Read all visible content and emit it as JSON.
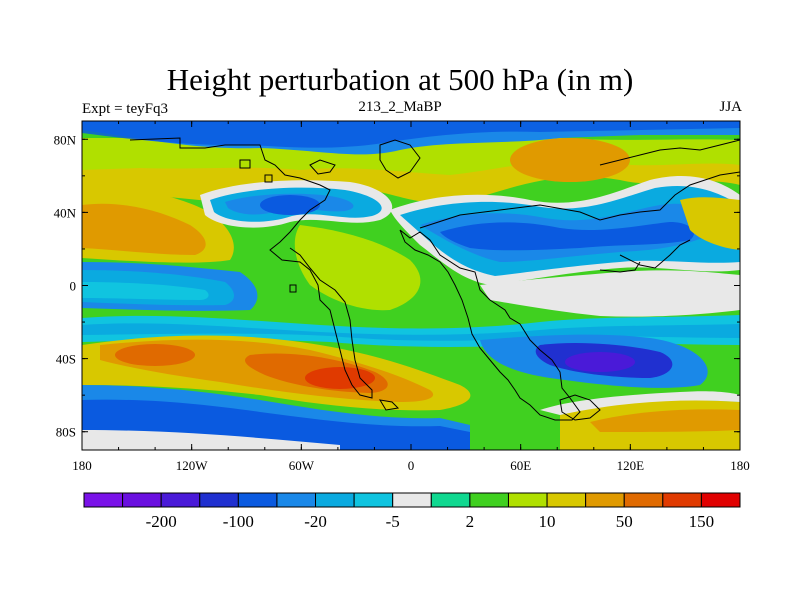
{
  "title": "Height perturbation at 500 hPa (in m)",
  "subtitle_left": "Expt = teyFq3",
  "subtitle_center": "213_2_MaBP",
  "subtitle_right": "JJA",
  "x_ticks": [
    {
      "lon": -180,
      "label": "180"
    },
    {
      "lon": -120,
      "label": "120W"
    },
    {
      "lon": -60,
      "label": "60W"
    },
    {
      "lon": 0,
      "label": "0"
    },
    {
      "lon": 60,
      "label": "60E"
    },
    {
      "lon": 120,
      "label": "120E"
    },
    {
      "lon": 180,
      "label": "180"
    }
  ],
  "y_ticks": [
    {
      "lat": 80,
      "label": "80N"
    },
    {
      "lat": 40,
      "label": "40N"
    },
    {
      "lat": 0,
      "label": "0"
    },
    {
      "lat": -40,
      "label": "40S"
    },
    {
      "lat": -80,
      "label": "80S"
    }
  ],
  "colorbar": {
    "colors": [
      "#7a12e8",
      "#6a10e0",
      "#4a1ad8",
      "#2030d0",
      "#0a5ae0",
      "#1a88e8",
      "#0aaae0",
      "#10c4e0",
      "#e8e8e8",
      "#10d890",
      "#40d020",
      "#b0e000",
      "#d8c800",
      "#e09a00",
      "#e06a00",
      "#e03a00",
      "#e00000"
    ],
    "labels": [
      {
        "after_index": 1,
        "text": "-200"
      },
      {
        "after_index": 3,
        "text": "-100"
      },
      {
        "after_index": 5,
        "text": "-20"
      },
      {
        "after_index": 7,
        "text": "-5"
      },
      {
        "after_index": 9,
        "text": "2"
      },
      {
        "after_index": 11,
        "text": "10"
      },
      {
        "after_index": 13,
        "text": "50"
      },
      {
        "after_index": 15,
        "text": "150"
      }
    ]
  },
  "chart_data": {
    "type": "heatmap",
    "title": "Height perturbation at 500 hPa (in m)",
    "lon_range": [
      -180,
      180
    ],
    "lat_range": [
      -90,
      90
    ],
    "features": [
      {
        "name": "arctic-positive-band",
        "lon": -80,
        "lat": 75,
        "value": 30
      },
      {
        "name": "arctic-asia-positive-max",
        "lon": 90,
        "lat": 70,
        "value": 50
      },
      {
        "name": "north-america-negative-center",
        "lon": -85,
        "lat": 42,
        "value": -20
      },
      {
        "name": "eurasia-negative-center",
        "lon": 70,
        "lat": 35,
        "value": -20
      },
      {
        "name": "north-pacific-positive",
        "lon": -150,
        "lat": 40,
        "value": 30
      },
      {
        "name": "tropics-positive",
        "lon": -40,
        "lat": 10,
        "value": 10
      },
      {
        "name": "south-pacific-positive-max",
        "lon": -25,
        "lat": -50,
        "value": 150
      },
      {
        "name": "indian-ocean-negative-center",
        "lon": 105,
        "lat": -45,
        "value": -100
      },
      {
        "name": "southern-high-lat-negative",
        "lon": -140,
        "lat": -70,
        "value": -20
      },
      {
        "name": "antarctic-positive",
        "lon": 140,
        "lat": -75,
        "value": 10
      }
    ]
  }
}
